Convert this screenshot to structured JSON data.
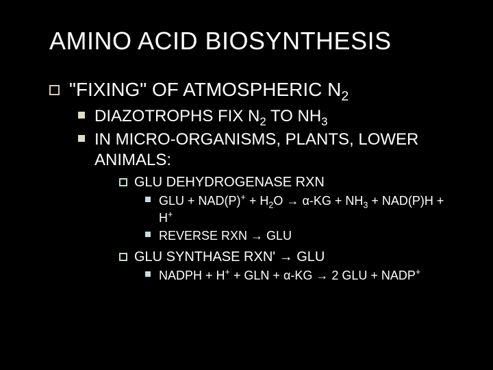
{
  "colors": {
    "background": "#000000",
    "title": "#ffffff",
    "level1_bullet": "#dcc8c0",
    "level2_bullet": "#e0dcc8",
    "level3_bullet": "#c8dcc8",
    "level4_bullet": "#c8dce0"
  },
  "title": "AMINO ACID BIOSYNTHESIS",
  "outline": {
    "l1_prefix": "\"FIXING\" OF ATMOSPHERIC N",
    "l1_sub": "2",
    "l2a_prefix": "DIAZOTROPHS FIX N",
    "l2a_mid": " TO NH",
    "l2a_sub1": "2",
    "l2a_sub2": "3",
    "l2b": "IN MICRO-ORGANISMS, PLANTS, LOWER ANIMALS:",
    "l3a": "GLU DEHYDROGENASE RXN",
    "l4a_1": "GLU + NAD(P)",
    "l4a_2": " + H",
    "l4a_3": "O → ",
    "l4a_alpha": "α",
    "l4a_4": "-KG + NH",
    "l4a_5": " + NAD(P)H  + H",
    "l4a_sup1": "+",
    "l4a_sub1": "2",
    "l4a_sub2": "3",
    "l4a_sup2": "+",
    "l4b": "REVERSE RXN → GLU",
    "l3b": "GLU SYNTHASE RXN' → GLU",
    "l4c_1": "NADPH + H",
    "l4c_2": " + GLN + ",
    "l4c_alpha": "α",
    "l4c_3": "-KG → 2 GLU + NADP",
    "l4c_sup1": "+",
    "l4c_sup2": "+"
  }
}
